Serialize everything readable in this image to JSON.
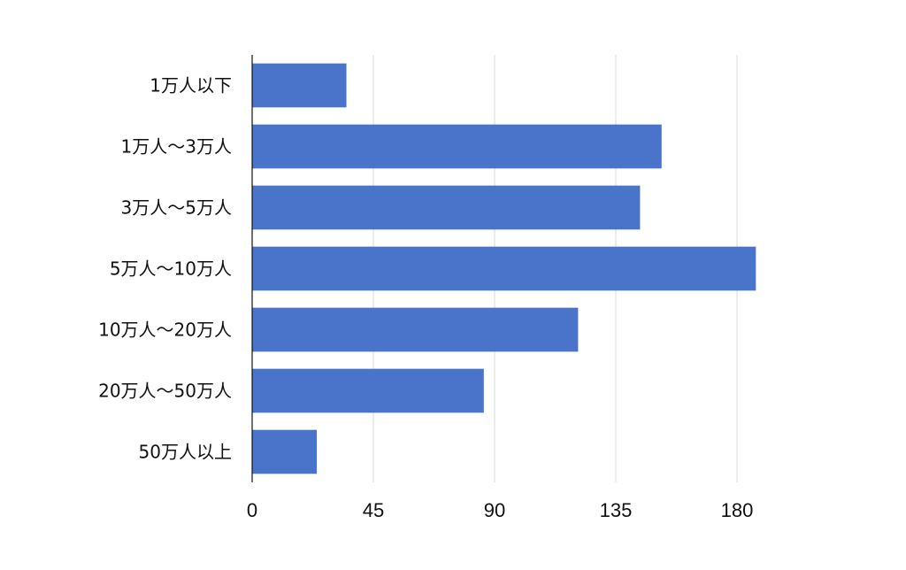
{
  "chart_data": {
    "type": "bar",
    "orientation": "horizontal",
    "categories": [
      "1万人以下",
      "1万人～3万人",
      "3万人～5万人",
      "5万人～10万人",
      "10万人～20万人",
      "20万人～50万人",
      "50万人以上"
    ],
    "values": [
      35,
      152,
      144,
      187,
      121,
      86,
      24
    ],
    "xlim": [
      0,
      225
    ],
    "xticks": [
      0,
      45,
      90,
      135,
      180
    ],
    "xtick_labels": [
      "0",
      "45",
      "90",
      "135",
      "180"
    ],
    "grid": "vertical",
    "bar_color": "#4a74c9"
  }
}
